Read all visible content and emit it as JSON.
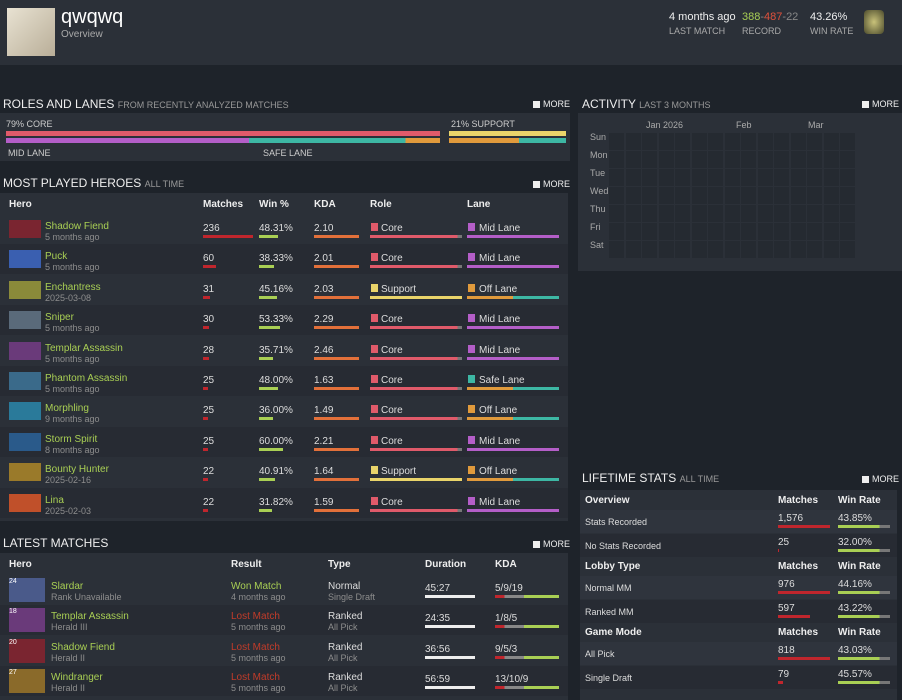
{
  "header": {
    "name": "qwqwq",
    "subtitle": "Overview",
    "last_match": "4 months ago",
    "last_match_label": "LAST MATCH",
    "record_wins": "388",
    "record_losses": "487",
    "record_abandons": "22",
    "record_label": "RECORD",
    "win_rate": "43.26%",
    "win_rate_label": "WIN RATE"
  },
  "roles_lanes": {
    "title": "ROLES AND LANES",
    "subtitle": "FROM RECENTLY ANALYZED MATCHES",
    "more": "MORE",
    "core": "79% CORE",
    "support": "21% SUPPORT",
    "mid_lane": "MID LANE",
    "safe_lane": "SAFE LANE"
  },
  "activity": {
    "title": "ACTIVITY",
    "subtitle": "LAST 3 MONTHS",
    "more": "MORE",
    "months": [
      "Jan 2026",
      "Feb",
      "Mar"
    ],
    "days": [
      "Sun",
      "Mon",
      "Tue",
      "Wed",
      "Thu",
      "Fri",
      "Sat"
    ]
  },
  "heroes": {
    "title": "MOST PLAYED HEROES",
    "subtitle": "ALL TIME",
    "more": "MORE",
    "headers": [
      "Hero",
      "Matches",
      "Win %",
      "KDA",
      "Role",
      "Lane"
    ],
    "rows": [
      [
        "Shadow Fiend",
        "5 months ago",
        "236",
        "48.31%",
        "2.10",
        "Core",
        "Mid Lane"
      ],
      [
        "Puck",
        "5 months ago",
        "60",
        "38.33%",
        "2.01",
        "Core",
        "Mid Lane"
      ],
      [
        "Enchantress",
        "2025-03-08",
        "31",
        "45.16%",
        "2.03",
        "Support",
        "Off Lane"
      ],
      [
        "Sniper",
        "5 months ago",
        "30",
        "53.33%",
        "2.29",
        "Core",
        "Mid Lane"
      ],
      [
        "Templar Assassin",
        "5 months ago",
        "28",
        "35.71%",
        "2.46",
        "Core",
        "Mid Lane"
      ],
      [
        "Phantom Assassin",
        "5 months ago",
        "25",
        "48.00%",
        "1.63",
        "Core",
        "Safe Lane"
      ],
      [
        "Morphling",
        "9 months ago",
        "25",
        "36.00%",
        "1.49",
        "Core",
        "Off Lane"
      ],
      [
        "Storm Spirit",
        "8 months ago",
        "25",
        "60.00%",
        "2.21",
        "Core",
        "Mid Lane"
      ],
      [
        "Bounty Hunter",
        "2025-02-16",
        "22",
        "40.91%",
        "1.64",
        "Support",
        "Off Lane"
      ],
      [
        "Lina",
        "2025-02-03",
        "22",
        "31.82%",
        "1.59",
        "Core",
        "Mid Lane"
      ]
    ]
  },
  "matches": {
    "title": "LATEST MATCHES",
    "more": "MORE",
    "headers": [
      "Hero",
      "Result",
      "Type",
      "Duration",
      "KDA"
    ],
    "rows": [
      [
        "24",
        "Slardar",
        "Rank Unavailable",
        "Won Match",
        "4 months ago",
        "Normal",
        "Single Draft",
        "45:27",
        "5/9/19"
      ],
      [
        "18",
        "Templar Assassin",
        "Herald III",
        "Lost Match",
        "5 months ago",
        "Ranked",
        "All Pick",
        "24:35",
        "1/8/5"
      ],
      [
        "20",
        "Shadow Fiend",
        "Herald II",
        "Lost Match",
        "5 months ago",
        "Ranked",
        "All Pick",
        "36:56",
        "9/5/3"
      ],
      [
        "27",
        "Windranger",
        "Herald II",
        "Lost Match",
        "5 months ago",
        "Ranked",
        "All Pick",
        "56:59",
        "13/10/9"
      ]
    ]
  },
  "lifetime": {
    "title": "LIFETIME STATS",
    "subtitle": "ALL TIME",
    "more": "MORE",
    "sections": [
      {
        "title": "Overview",
        "headers": [
          "Matches",
          "Win Rate"
        ],
        "rows": [
          [
            "Stats Recorded",
            "1,576",
            "43.85%"
          ],
          [
            "No Stats Recorded",
            "25",
            "32.00%"
          ]
        ]
      },
      {
        "title": "Lobby Type",
        "headers": [
          "Matches",
          "Win Rate"
        ],
        "rows": [
          [
            "Normal MM",
            "976",
            "44.16%"
          ],
          [
            "Ranked MM",
            "597",
            "43.22%"
          ]
        ]
      },
      {
        "title": "Game Mode",
        "headers": [
          "Matches",
          "Win Rate"
        ],
        "rows": [
          [
            "All Pick",
            "818",
            "43.03%"
          ],
          [
            "Single Draft",
            "79",
            "45.57%"
          ]
        ]
      }
    ]
  }
}
